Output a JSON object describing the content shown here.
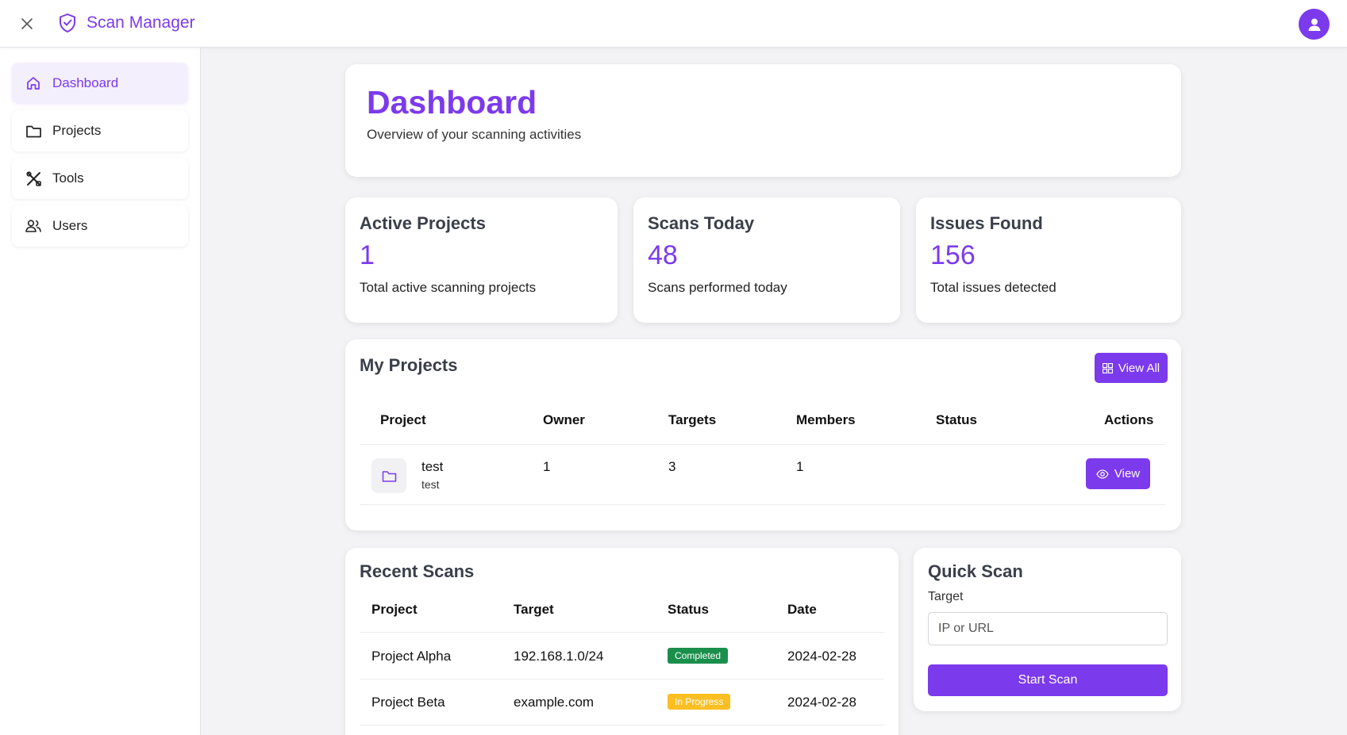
{
  "app": {
    "title": "Scan Manager"
  },
  "sidebar": {
    "items": [
      {
        "label": "Dashboard"
      },
      {
        "label": "Projects"
      },
      {
        "label": "Tools"
      },
      {
        "label": "Users"
      }
    ]
  },
  "header": {
    "title": "Dashboard",
    "subtitle": "Overview of your scanning activities"
  },
  "stats": [
    {
      "title": "Active Projects",
      "value": "1",
      "desc": "Total active scanning projects"
    },
    {
      "title": "Scans Today",
      "value": "48",
      "desc": "Scans performed today"
    },
    {
      "title": "Issues Found",
      "value": "156",
      "desc": "Total issues detected"
    }
  ],
  "projects": {
    "title": "My Projects",
    "view_all_label": "View All",
    "columns": [
      "Project",
      "Owner",
      "Targets",
      "Members",
      "Status",
      "Actions"
    ],
    "rows": [
      {
        "name": "test",
        "description": "test",
        "owner": "1",
        "targets": "3",
        "members": "1",
        "status": "",
        "action_label": "View"
      }
    ]
  },
  "recent_scans": {
    "title": "Recent Scans",
    "columns": [
      "Project",
      "Target",
      "Status",
      "Date"
    ],
    "rows": [
      {
        "project": "Project Alpha",
        "target": "192.168.1.0/24",
        "status": "Completed",
        "date": "2024-02-28"
      },
      {
        "project": "Project Beta",
        "target": "example.com",
        "status": "In Progress",
        "date": "2024-02-28"
      }
    ]
  },
  "quick_scan": {
    "title": "Quick Scan",
    "target_label": "Target",
    "target_placeholder": "IP or URL",
    "target_value": "",
    "start_label": "Start Scan"
  },
  "colors": {
    "accent": "#7c3aed",
    "status_completed": "#1a8f4c",
    "status_in_progress": "#fbbf24"
  },
  "icons": {
    "close": "close-icon",
    "brand": "shield-icon",
    "avatar": "user-icon",
    "dashboard": "home-icon",
    "projects": "folder-icon",
    "tools": "tools-icon",
    "users": "users-icon",
    "view_all": "grid-icon",
    "view": "eye-icon"
  }
}
